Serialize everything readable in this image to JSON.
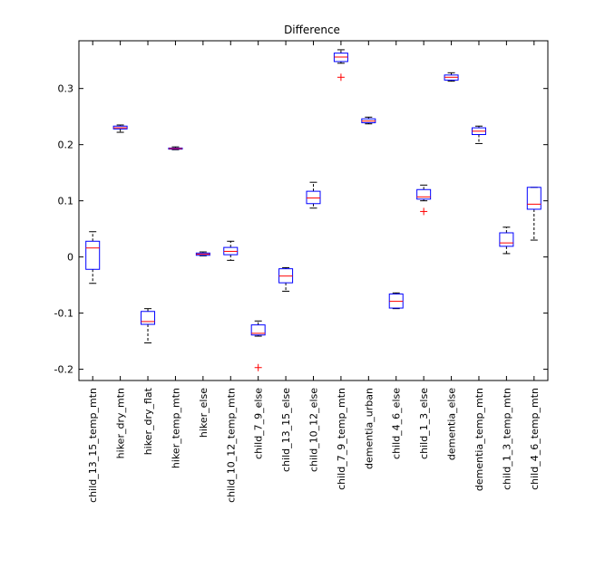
{
  "chart_data": {
    "type": "box",
    "title": "Difference",
    "xlabel": "",
    "ylabel": "",
    "ylim": [
      -0.22,
      0.385
    ],
    "yticks": [
      -0.2,
      -0.1,
      0,
      0.1,
      0.2,
      0.3
    ],
    "ytick_labels": [
      "-0.2",
      "-0.1",
      "0",
      "0.1",
      "0.2",
      "0.3"
    ],
    "grid": false,
    "colors": {
      "box": "#0000ff",
      "median": "#ff0000",
      "whisker": "#000000",
      "outlier": "#ff0000",
      "axis": "#000000"
    },
    "categories": [
      "child_13_15_temp_mtn",
      "hiker_dry_mtn",
      "hiker_dry_flat",
      "hiker_temp_mtn",
      "hiker_else",
      "child_10_12_temp_mtn",
      "child_7_9_else",
      "child_13_15_else",
      "child_10_12_else",
      "child_7_9_temp_mtn",
      "dementia_urban",
      "child_4_6_else",
      "child_1_3_else",
      "dementia_else",
      "dementia_temp_mtn",
      "child_1_3_temp_mtn",
      "child_4_6_temp_mtn"
    ],
    "boxes": [
      {
        "whislo": -0.047,
        "q1": -0.022,
        "med": 0.016,
        "q3": 0.028,
        "whishi": 0.045,
        "outliers": []
      },
      {
        "whislo": 0.222,
        "q1": 0.228,
        "med": 0.23,
        "q3": 0.233,
        "whishi": 0.235,
        "outliers": []
      },
      {
        "whislo": -0.153,
        "q1": -0.12,
        "med": -0.115,
        "q3": -0.097,
        "whishi": -0.092,
        "outliers": []
      },
      {
        "whislo": 0.191,
        "q1": 0.192,
        "med": 0.193,
        "q3": 0.194,
        "whishi": 0.196,
        "outliers": []
      },
      {
        "whislo": 0.002,
        "q1": 0.003,
        "med": 0.005,
        "q3": 0.007,
        "whishi": 0.009,
        "outliers": []
      },
      {
        "whislo": -0.006,
        "q1": 0.004,
        "med": 0.01,
        "q3": 0.017,
        "whishi": 0.028,
        "outliers": []
      },
      {
        "whislo": -0.141,
        "q1": -0.139,
        "med": -0.136,
        "q3": -0.121,
        "whishi": -0.114,
        "outliers": [
          -0.197
        ]
      },
      {
        "whislo": -0.061,
        "q1": -0.046,
        "med": -0.034,
        "q3": -0.021,
        "whishi": -0.019,
        "outliers": []
      },
      {
        "whislo": 0.087,
        "q1": 0.095,
        "med": 0.105,
        "q3": 0.117,
        "whishi": 0.133,
        "outliers": []
      },
      {
        "whislo": 0.345,
        "q1": 0.348,
        "med": 0.356,
        "q3": 0.363,
        "whishi": 0.369,
        "outliers": [
          0.32
        ]
      },
      {
        "whislo": 0.237,
        "q1": 0.239,
        "med": 0.242,
        "q3": 0.246,
        "whishi": 0.249,
        "outliers": []
      },
      {
        "whislo": -0.092,
        "q1": -0.091,
        "med": -0.079,
        "q3": -0.066,
        "whishi": -0.064,
        "outliers": []
      },
      {
        "whislo": 0.1,
        "q1": 0.103,
        "med": 0.107,
        "q3": 0.12,
        "whishi": 0.128,
        "outliers": [
          0.081
        ]
      },
      {
        "whislo": 0.313,
        "q1": 0.315,
        "med": 0.32,
        "q3": 0.324,
        "whishi": 0.328,
        "outliers": []
      },
      {
        "whislo": 0.202,
        "q1": 0.218,
        "med": 0.224,
        "q3": 0.23,
        "whishi": 0.233,
        "outliers": []
      },
      {
        "whislo": 0.006,
        "q1": 0.019,
        "med": 0.025,
        "q3": 0.043,
        "whishi": 0.053,
        "outliers": []
      },
      {
        "whislo": 0.03,
        "q1": 0.085,
        "med": 0.094,
        "q3": 0.124,
        "whishi": 0.124,
        "outliers": []
      }
    ]
  }
}
